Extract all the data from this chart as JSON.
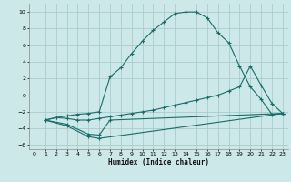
{
  "xlabel": "Humidex (Indice chaleur)",
  "background_color": "#cce8e8",
  "grid_color": "#aacccc",
  "line_color": "#1a6b6b",
  "xlim": [
    -0.5,
    23.5
  ],
  "ylim": [
    -6.5,
    11.0
  ],
  "xticks": [
    0,
    1,
    2,
    3,
    4,
    5,
    6,
    7,
    8,
    9,
    10,
    11,
    12,
    13,
    14,
    15,
    16,
    17,
    18,
    19,
    20,
    21,
    22,
    23
  ],
  "yticks": [
    -6,
    -4,
    -2,
    0,
    2,
    4,
    6,
    8,
    10
  ],
  "line1_x": [
    1,
    2,
    3,
    4,
    5,
    6,
    7,
    8,
    9,
    10,
    11,
    12,
    13,
    14,
    15,
    16,
    17,
    18,
    19,
    20,
    21,
    22,
    23
  ],
  "line1_y": [
    -3.0,
    -2.7,
    -2.5,
    -2.3,
    -2.2,
    -2.0,
    2.2,
    3.3,
    5.0,
    6.5,
    7.8,
    8.8,
    9.8,
    10.0,
    10.0,
    9.3,
    7.5,
    6.3,
    3.5,
    1.0,
    -0.5,
    -2.3,
    -2.2
  ],
  "line2_x": [
    1,
    2,
    3,
    4,
    5,
    6,
    7,
    8,
    9,
    10,
    11,
    12,
    13,
    14,
    15,
    16,
    17,
    18,
    19,
    20,
    21,
    22,
    23
  ],
  "line2_y": [
    -3.0,
    -2.7,
    -2.8,
    -3.0,
    -3.0,
    -2.8,
    -2.6,
    -2.4,
    -2.2,
    -2.0,
    -1.8,
    -1.5,
    -1.2,
    -0.9,
    -0.6,
    -0.3,
    0.0,
    0.5,
    1.0,
    3.5,
    1.2,
    -1.0,
    -2.2
  ],
  "line3_x": [
    1,
    3,
    5,
    6,
    23
  ],
  "line3_y": [
    -3.0,
    -3.7,
    -5.0,
    -5.2,
    -2.2
  ],
  "line4_x": [
    1,
    3,
    5,
    6,
    7,
    23
  ],
  "line4_y": [
    -3.0,
    -3.5,
    -4.7,
    -4.8,
    -3.0,
    -2.2
  ]
}
